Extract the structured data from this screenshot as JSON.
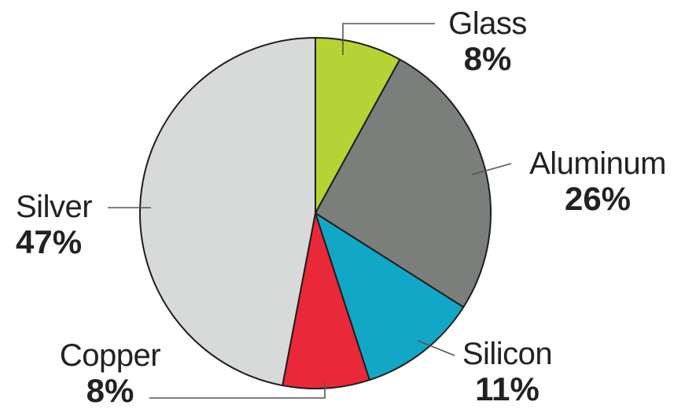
{
  "chart_data": {
    "type": "pie",
    "title": "",
    "start_angle_deg": 0,
    "direction": "clockwise",
    "slices": [
      {
        "label": "Glass",
        "value": 8,
        "display": "8%",
        "color": "#b5d334"
      },
      {
        "label": "Aluminum",
        "value": 26,
        "display": "26%",
        "color": "#7a7f7c"
      },
      {
        "label": "Silicon",
        "value": 11,
        "display": "11%",
        "color": "#12a7c6"
      },
      {
        "label": "Copper",
        "value": 8,
        "display": "8%",
        "color": "#e9283a"
      },
      {
        "label": "Silver",
        "value": 47,
        "display": "47%",
        "color": "#d7dad8"
      }
    ],
    "stroke_color": "#1e1e1e",
    "leader_line_color": "#555555"
  }
}
